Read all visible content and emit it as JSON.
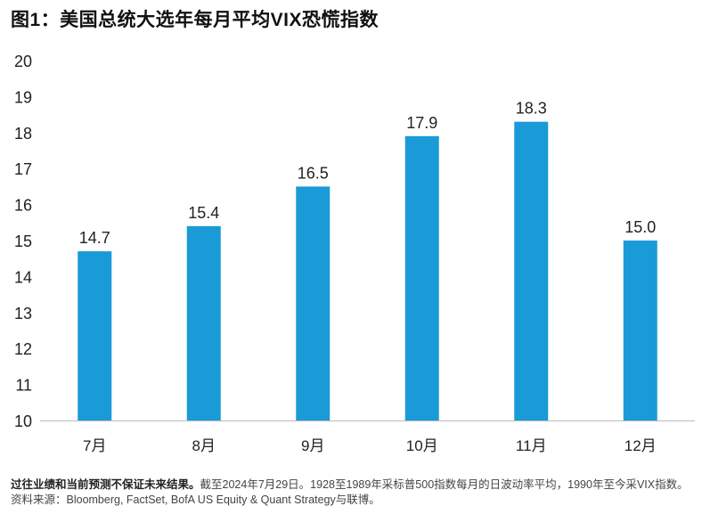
{
  "title": "图1：美国总统大选年每月平均VIX恐慌指数",
  "footnote": {
    "bold": "过往业绩和当前预测不保证未来结果。",
    "text": "截至2024年7月29日。1928至1989年采标普500指数每月的日波动率平均，1990年至今采VIX指数。资料来源：Bloomberg, FactSet, BofA US Equity & Quant Strategy与联博。"
  },
  "chart_data": {
    "type": "bar",
    "title": "图1：美国总统大选年每月平均VIX恐慌指数",
    "categories": [
      "7月",
      "8月",
      "9月",
      "10月",
      "11月",
      "12月"
    ],
    "values": [
      14.7,
      15.4,
      16.5,
      17.9,
      18.3,
      15.0
    ],
    "data_labels": [
      "14.7",
      "15.4",
      "16.5",
      "17.9",
      "18.3",
      "15.0"
    ],
    "xlabel": "",
    "ylabel": "",
    "ylim": [
      10,
      20
    ],
    "yticks": [
      10,
      11,
      12,
      13,
      14,
      15,
      16,
      17,
      18,
      19,
      20
    ],
    "grid": false,
    "color": "#1a9ad6"
  }
}
